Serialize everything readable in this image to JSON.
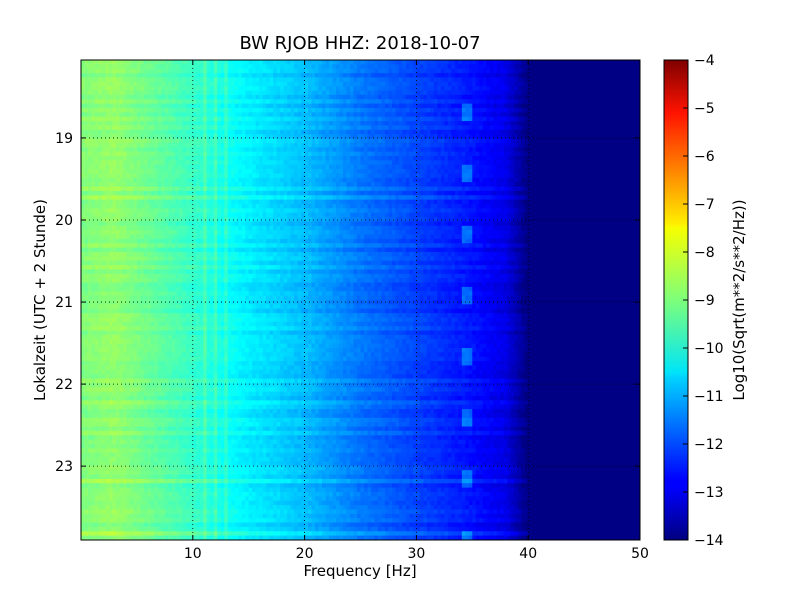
{
  "chart_data": {
    "type": "heatmap",
    "title": "BW RJOB HHZ: 2018-10-07",
    "xlabel": "Frequency [Hz]",
    "ylabel": "Lokalzeit (UTC + 2 Stunde)",
    "colorbar_label": "Log10(Sqrt(m**2/s**2/Hz))",
    "xlim": [
      0,
      50
    ],
    "ylim": [
      18.05,
      23.9
    ],
    "y_inverted": true,
    "x_ticks": [
      10,
      20,
      30,
      40,
      50
    ],
    "x_tick_labels": [
      "10",
      "20",
      "30",
      "40",
      "50"
    ],
    "y_ticks": [
      19,
      20,
      21,
      22,
      23
    ],
    "y_tick_labels": [
      "19",
      "20",
      "21",
      "22",
      "23"
    ],
    "colorbar_ticks": [
      -4,
      -5,
      -6,
      -7,
      -8,
      -9,
      -10,
      -11,
      -12,
      -13,
      -14
    ],
    "colorbar_tick_labels": [
      "−4",
      "−5",
      "−6",
      "−7",
      "−8",
      "−9",
      "−10",
      "−11",
      "−12",
      "−13",
      "−14"
    ],
    "clim": [
      -14,
      -4
    ],
    "colormap": "jet",
    "grid": true,
    "grid_style": "dotted",
    "approx_level_profile": {
      "frequency_hz": [
        0,
        3,
        10,
        15,
        20,
        25,
        30,
        35,
        38,
        40,
        50
      ],
      "log10_psd": [
        -9.0,
        -8.8,
        -9.7,
        -10.4,
        -10.9,
        -11.6,
        -12.1,
        -12.6,
        -13.0,
        -14.0,
        -14.0
      ]
    },
    "features": [
      {
        "label": "narrow lines",
        "frequency_hz": [
          11,
          12,
          13
        ]
      },
      {
        "label": "tonal trace",
        "frequency_hz": 34.5
      }
    ]
  }
}
